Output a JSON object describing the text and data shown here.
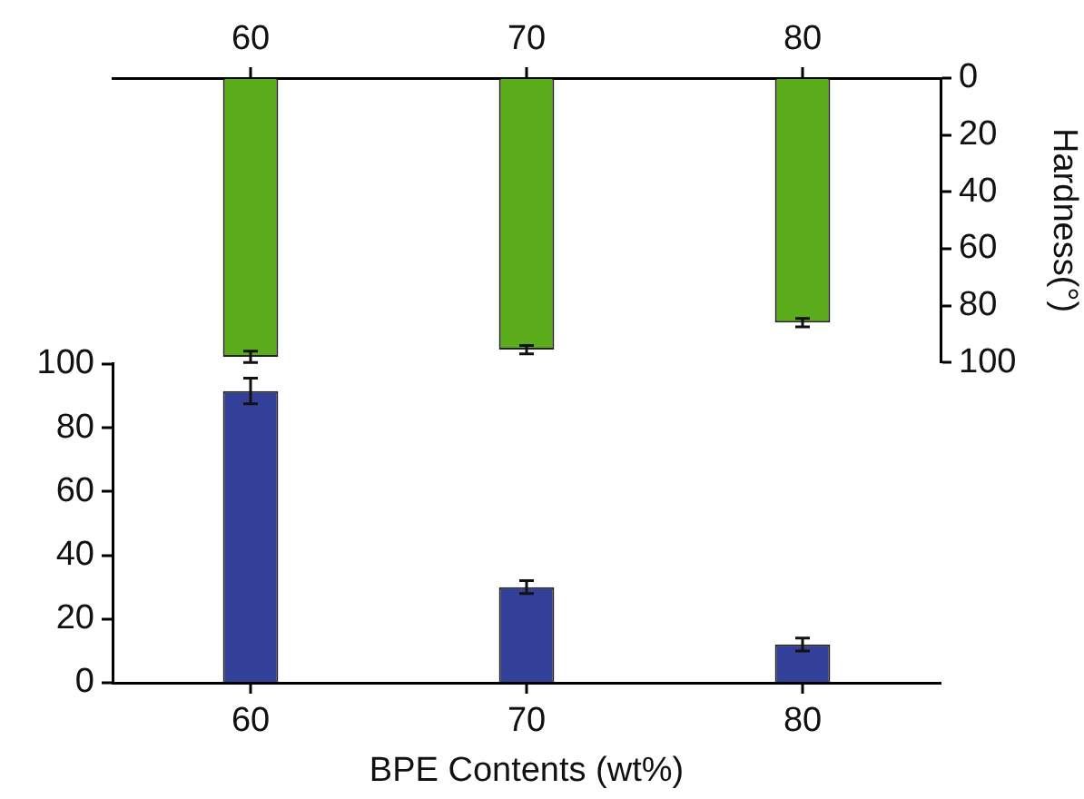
{
  "chart_data": [
    {
      "type": "bar",
      "categories": [
        "60",
        "70",
        "80"
      ],
      "y2label": "Hardness(°)",
      "y2lim": [
        100,
        0
      ],
      "y2ticks": [
        0,
        20,
        40,
        60,
        80,
        100
      ],
      "grid": false,
      "legend": false,
      "series": [
        {
          "color": "#5aac1a",
          "axis": "y2",
          "values": [
            98,
            95.5,
            86
          ],
          "errors": [
            2,
            1.5,
            1.5
          ]
        }
      ]
    },
    {
      "type": "bar",
      "categories": [
        "60",
        "70",
        "80"
      ],
      "xlabel": "BPE Contents (wt%)",
      "ylim": [
        0,
        100
      ],
      "yticks": [
        0,
        20,
        40,
        60,
        80,
        100
      ],
      "grid": false,
      "legend": false,
      "series": [
        {
          "color": "#33409a",
          "values": [
            91.5,
            30,
            12
          ],
          "errors": [
            4,
            2,
            2
          ]
        }
      ]
    }
  ]
}
